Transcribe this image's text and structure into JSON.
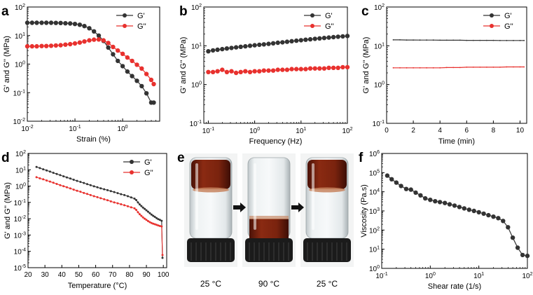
{
  "figure": {
    "colors": {
      "g_prime": "#333333",
      "g_double_prime": "#e8312e",
      "axis": "#000000",
      "arrow": "#111111"
    }
  },
  "chart_data": [
    {
      "id": "a",
      "panel_label": "a",
      "type": "line",
      "xscale": "log",
      "yscale": "log",
      "xlim": [
        0.01,
        6
      ],
      "ylim": [
        0.01,
        100
      ],
      "xlabel": "Strain (%)",
      "ylabel": "G' and G'' (MPa)",
      "xticks": [
        {
          "value": 0.01,
          "base": "10",
          "exp": "-2"
        },
        {
          "value": 0.1,
          "base": "10",
          "exp": "-1"
        },
        {
          "value": 1,
          "base": "10",
          "exp": "0"
        }
      ],
      "yticks": [
        {
          "value": 0.01,
          "base": "10",
          "exp": "-2"
        },
        {
          "value": 0.1,
          "base": "10",
          "exp": "-1"
        },
        {
          "value": 1,
          "base": "10",
          "exp": "0"
        },
        {
          "value": 10,
          "base": "10",
          "exp": "1"
        },
        {
          "value": 100,
          "base": "10",
          "exp": "2"
        }
      ],
      "legend": [
        "G'",
        "G''"
      ],
      "legend_position": "top-right",
      "series": [
        {
          "name": "G'",
          "color": "#333333",
          "marker": "circle",
          "marker_size": 3.2,
          "stroke_width": 1.2,
          "x": [
            0.01,
            0.0126,
            0.0158,
            0.02,
            0.0251,
            0.0316,
            0.0398,
            0.05,
            0.063,
            0.0794,
            0.1,
            0.126,
            0.158,
            0.2,
            0.251,
            0.316,
            0.398,
            0.5,
            0.63,
            0.794,
            1.0,
            1.26,
            1.58,
            2.0,
            2.51,
            3.16,
            3.98,
            4.5
          ],
          "y": [
            28,
            28,
            28,
            28,
            28,
            28,
            27.8,
            27.5,
            27,
            26.5,
            25.5,
            24,
            21.5,
            18,
            14,
            10,
            6.5,
            3.8,
            2.2,
            1.3,
            0.85,
            0.55,
            0.38,
            0.26,
            0.17,
            0.095,
            0.045,
            0.045
          ]
        },
        {
          "name": "G''",
          "color": "#e8312e",
          "marker": "circle",
          "marker_size": 3.2,
          "stroke_width": 1.2,
          "x": [
            0.01,
            0.0126,
            0.0158,
            0.02,
            0.0251,
            0.0316,
            0.0398,
            0.05,
            0.063,
            0.0794,
            0.1,
            0.126,
            0.158,
            0.2,
            0.251,
            0.316,
            0.398,
            0.5,
            0.63,
            0.794,
            1.0,
            1.26,
            1.58,
            2.0,
            2.51,
            3.16,
            3.98,
            4.5
          ],
          "y": [
            4.2,
            4.2,
            4.2,
            4.3,
            4.3,
            4.4,
            4.5,
            4.6,
            4.8,
            5.0,
            5.3,
            5.7,
            6.2,
            6.8,
            7.2,
            7.3,
            6.8,
            5.5,
            4.0,
            3.0,
            2.3,
            1.7,
            1.3,
            0.95,
            0.7,
            0.45,
            0.28,
            0.2
          ]
        }
      ]
    },
    {
      "id": "b",
      "panel_label": "b",
      "type": "line",
      "xscale": "log",
      "yscale": "log",
      "xlim": [
        0.08,
        100
      ],
      "ylim": [
        0.1,
        100
      ],
      "xlabel": "Frequency (Hz)",
      "ylabel": "G' and G'' (MPa)",
      "xticks": [
        {
          "value": 0.1,
          "base": "10",
          "exp": "-1"
        },
        {
          "value": 1,
          "base": "10",
          "exp": "0"
        },
        {
          "value": 10,
          "base": "10",
          "exp": "1"
        },
        {
          "value": 100,
          "base": "10",
          "exp": "2"
        }
      ],
      "yticks": [
        {
          "value": 0.1,
          "base": "10",
          "exp": "-1"
        },
        {
          "value": 1,
          "base": "10",
          "exp": "0"
        },
        {
          "value": 10,
          "base": "10",
          "exp": "1"
        },
        {
          "value": 100,
          "base": "10",
          "exp": "2"
        }
      ],
      "legend": [
        "G'",
        "G''"
      ],
      "legend_position": "top-right",
      "series": [
        {
          "name": "G'",
          "color": "#333333",
          "marker": "circle",
          "marker_size": 3.2,
          "stroke_width": 1.2,
          "x": [
            0.1,
            0.126,
            0.158,
            0.2,
            0.251,
            0.316,
            0.398,
            0.5,
            0.63,
            0.794,
            1.0,
            1.26,
            1.58,
            2.0,
            2.51,
            3.16,
            3.98,
            5.0,
            6.3,
            7.94,
            10,
            12.6,
            15.8,
            20,
            25.1,
            31.6,
            39.8,
            50,
            63,
            79.4,
            100
          ],
          "y": [
            7.2,
            7.6,
            7.9,
            8.2,
            8.5,
            8.8,
            9.1,
            9.4,
            9.7,
            10.0,
            10.3,
            10.6,
            10.9,
            11.2,
            11.6,
            12.0,
            12.3,
            12.7,
            13.1,
            13.5,
            13.9,
            14.3,
            14.7,
            15.1,
            15.5,
            15.9,
            16.3,
            16.7,
            17.1,
            17.5,
            17.9
          ]
        },
        {
          "name": "G''",
          "color": "#e8312e",
          "marker": "circle",
          "marker_size": 3.2,
          "stroke_width": 1.2,
          "x": [
            0.1,
            0.126,
            0.158,
            0.2,
            0.251,
            0.316,
            0.398,
            0.5,
            0.63,
            0.794,
            1.0,
            1.26,
            1.58,
            2.0,
            2.51,
            3.16,
            3.98,
            5.0,
            6.3,
            7.94,
            10,
            12.6,
            15.8,
            20,
            25.1,
            31.6,
            39.8,
            50,
            63,
            79.4,
            100
          ],
          "y": [
            2.1,
            2.1,
            2.2,
            2.4,
            2.1,
            2.2,
            2.0,
            2.1,
            2.2,
            2.1,
            2.2,
            2.2,
            2.3,
            2.3,
            2.3,
            2.4,
            2.4,
            2.4,
            2.5,
            2.5,
            2.5,
            2.5,
            2.6,
            2.6,
            2.6,
            2.6,
            2.7,
            2.7,
            2.7,
            2.8,
            2.8
          ]
        }
      ]
    },
    {
      "id": "c",
      "panel_label": "c",
      "type": "line",
      "xscale": "linear",
      "yscale": "log",
      "xlim": [
        0,
        10.5
      ],
      "ylim": [
        0.1,
        100
      ],
      "xlabel": "Time (min)",
      "ylabel": "G' and G'' (MPa)",
      "xticks": [
        {
          "value": 0,
          "text": "0"
        },
        {
          "value": 2,
          "text": "2"
        },
        {
          "value": 4,
          "text": "4"
        },
        {
          "value": 6,
          "text": "6"
        },
        {
          "value": 8,
          "text": "8"
        },
        {
          "value": 10,
          "text": "10"
        }
      ],
      "yticks": [
        {
          "value": 0.1,
          "base": "10",
          "exp": "-1"
        },
        {
          "value": 1,
          "base": "10",
          "exp": "0"
        },
        {
          "value": 10,
          "base": "10",
          "exp": "1"
        },
        {
          "value": 100,
          "base": "10",
          "exp": "2"
        }
      ],
      "legend": [
        "G'",
        "G''"
      ],
      "legend_position": "top-right",
      "series": [
        {
          "name": "G'",
          "color": "#333333",
          "marker": "circle",
          "marker_size": 0.9,
          "stroke_width": 1.2,
          "x": [
            0.5,
            1.0,
            1.5,
            2.0,
            2.5,
            3.0,
            3.5,
            4.0,
            4.5,
            5.0,
            5.5,
            6.0,
            6.5,
            7.0,
            7.5,
            8.0,
            8.5,
            9.0,
            9.5,
            10.0,
            10.3
          ],
          "y": [
            14.2,
            14.2,
            14.1,
            14.1,
            14.0,
            14.0,
            14.0,
            13.9,
            13.9,
            13.9,
            13.9,
            13.8,
            13.8,
            13.8,
            13.8,
            13.8,
            13.7,
            13.7,
            13.7,
            13.7,
            13.7
          ]
        },
        {
          "name": "G''",
          "color": "#e8312e",
          "marker": "circle",
          "marker_size": 0.9,
          "stroke_width": 1.2,
          "x": [
            0.5,
            1.0,
            1.5,
            2.0,
            2.5,
            3.0,
            3.5,
            4.0,
            4.5,
            5.0,
            5.5,
            6.0,
            6.5,
            7.0,
            7.5,
            8.0,
            8.5,
            9.0,
            9.5,
            10.0,
            10.3
          ],
          "y": [
            2.7,
            2.7,
            2.7,
            2.7,
            2.7,
            2.7,
            2.7,
            2.7,
            2.75,
            2.75,
            2.75,
            2.8,
            2.8,
            2.8,
            2.8,
            2.8,
            2.8,
            2.85,
            2.85,
            2.85,
            2.85
          ]
        }
      ]
    },
    {
      "id": "d",
      "panel_label": "d",
      "type": "line",
      "xscale": "linear",
      "yscale": "log",
      "xlim": [
        20,
        102
      ],
      "ylim": [
        1e-05,
        100
      ],
      "xlabel": "Temperature (°C)",
      "ylabel": "G' and G'' (MPa)",
      "xticks": [
        {
          "value": 20,
          "text": "20"
        },
        {
          "value": 30,
          "text": "30"
        },
        {
          "value": 40,
          "text": "40"
        },
        {
          "value": 50,
          "text": "50"
        },
        {
          "value": 60,
          "text": "60"
        },
        {
          "value": 70,
          "text": "70"
        },
        {
          "value": 80,
          "text": "80"
        },
        {
          "value": 90,
          "text": "90"
        },
        {
          "value": 100,
          "text": "100"
        }
      ],
      "yticks": [
        {
          "value": 1e-05,
          "base": "10",
          "exp": "-5"
        },
        {
          "value": 0.0001,
          "base": "10",
          "exp": "-4"
        },
        {
          "value": 0.001,
          "base": "10",
          "exp": "-3"
        },
        {
          "value": 0.01,
          "base": "10",
          "exp": "-2"
        },
        {
          "value": 0.1,
          "base": "10",
          "exp": "-1"
        },
        {
          "value": 1,
          "base": "10",
          "exp": "0"
        },
        {
          "value": 10,
          "base": "10",
          "exp": "1"
        },
        {
          "value": 100,
          "base": "10",
          "exp": "2"
        }
      ],
      "legend": [
        "G'",
        "G''"
      ],
      "legend_position": "top-right",
      "series": [
        {
          "name": "G'",
          "color": "#333333",
          "marker": "circle",
          "marker_size": 1.5,
          "stroke_width": 1.1,
          "x": [
            25,
            27,
            29,
            31,
            33,
            35,
            37,
            39,
            41,
            43,
            45,
            47,
            49,
            51,
            53,
            55,
            57,
            59,
            61,
            63,
            65,
            67,
            69,
            71,
            73,
            75,
            77,
            79,
            81,
            83,
            84,
            85,
            86,
            87,
            88,
            89,
            90,
            91,
            92,
            93,
            94,
            95,
            96,
            97,
            98,
            99,
            99.5
          ],
          "y": [
            15,
            12.7,
            10.7,
            9.1,
            7.7,
            6.5,
            5.5,
            4.7,
            4.0,
            3.4,
            2.9,
            2.45,
            2.1,
            1.8,
            1.55,
            1.32,
            1.13,
            0.97,
            0.84,
            0.73,
            0.64,
            0.56,
            0.49,
            0.43,
            0.37,
            0.32,
            0.28,
            0.24,
            0.2,
            0.17,
            0.14,
            0.1,
            0.075,
            0.06,
            0.048,
            0.04,
            0.033,
            0.027,
            0.022,
            0.018,
            0.015,
            0.013,
            0.011,
            0.0095,
            0.0085,
            0.0075,
            4e-05
          ]
        },
        {
          "name": "G''",
          "color": "#e8312e",
          "marker": "circle",
          "marker_size": 1.5,
          "stroke_width": 1.1,
          "x": [
            25,
            27,
            29,
            31,
            33,
            35,
            37,
            39,
            41,
            43,
            45,
            47,
            49,
            51,
            53,
            55,
            57,
            59,
            61,
            63,
            65,
            67,
            69,
            71,
            73,
            75,
            77,
            79,
            81,
            83,
            84,
            85,
            86,
            87,
            88,
            89,
            90,
            91,
            92,
            93,
            94,
            95,
            96,
            97,
            98,
            99,
            99.5
          ],
          "y": [
            3.5,
            3.0,
            2.6,
            2.2,
            1.9,
            1.6,
            1.35,
            1.15,
            0.98,
            0.84,
            0.72,
            0.61,
            0.52,
            0.45,
            0.38,
            0.33,
            0.28,
            0.24,
            0.21,
            0.18,
            0.155,
            0.135,
            0.115,
            0.1,
            0.088,
            0.077,
            0.067,
            0.058,
            0.05,
            0.043,
            0.035,
            0.025,
            0.019,
            0.015,
            0.012,
            0.01,
            0.0085,
            0.0072,
            0.0062,
            0.0055,
            0.005,
            0.0046,
            0.0042,
            0.0039,
            0.0036,
            0.0034,
            6e-05
          ]
        }
      ]
    },
    {
      "id": "f",
      "panel_label": "f",
      "type": "line",
      "xscale": "log",
      "yscale": "log",
      "xlim": [
        0.1,
        100
      ],
      "ylim": [
        1,
        1000000
      ],
      "xlabel": "Shear rate (1/s)",
      "ylabel": "Viscosity (Pa.s)",
      "xticks": [
        {
          "value": 0.1,
          "base": "10",
          "exp": "-1"
        },
        {
          "value": 1,
          "base": "10",
          "exp": "0"
        },
        {
          "value": 10,
          "base": "10",
          "exp": "1"
        },
        {
          "value": 100,
          "base": "10",
          "exp": "2"
        }
      ],
      "yticks": [
        {
          "value": 1,
          "base": "10",
          "exp": "0"
        },
        {
          "value": 10,
          "base": "10",
          "exp": "1"
        },
        {
          "value": 100,
          "base": "10",
          "exp": "2"
        },
        {
          "value": 1000,
          "base": "10",
          "exp": "3"
        },
        {
          "value": 10000,
          "base": "10",
          "exp": "4"
        },
        {
          "value": 100000,
          "base": "10",
          "exp": "5"
        },
        {
          "value": 1000000,
          "base": "10",
          "exp": "6"
        }
      ],
      "legend": [],
      "legend_position": "none",
      "series": [
        {
          "name": "Viscosity",
          "color": "#333333",
          "marker": "circle",
          "marker_size": 3.2,
          "stroke_width": 1.2,
          "x": [
            0.13,
            0.16,
            0.2,
            0.25,
            0.32,
            0.4,
            0.5,
            0.63,
            0.79,
            1.0,
            1.26,
            1.58,
            2.0,
            2.51,
            3.16,
            3.98,
            5.0,
            6.3,
            7.94,
            10,
            12.6,
            15.8,
            20,
            25.1,
            31.6,
            39.8,
            50,
            63,
            79.4,
            100
          ],
          "y": [
            70000,
            45000,
            30000,
            20000,
            14000,
            13000,
            9000,
            6500,
            4500,
            3800,
            3200,
            2900,
            2600,
            2200,
            1900,
            1600,
            1350,
            1150,
            1000,
            850,
            720,
            600,
            500,
            420,
            300,
            140,
            40,
            12,
            5,
            4.5
          ]
        }
      ]
    }
  ],
  "photo_panel": {
    "panel_label": "e",
    "vials": [
      {
        "caption": "25 °C",
        "state": "gel at top (inverted, no flow)"
      },
      {
        "caption": "90 °C",
        "state": "liquid flowed to bottom"
      },
      {
        "caption": "25 °C",
        "state": "gel at top (recovered)"
      }
    ]
  }
}
